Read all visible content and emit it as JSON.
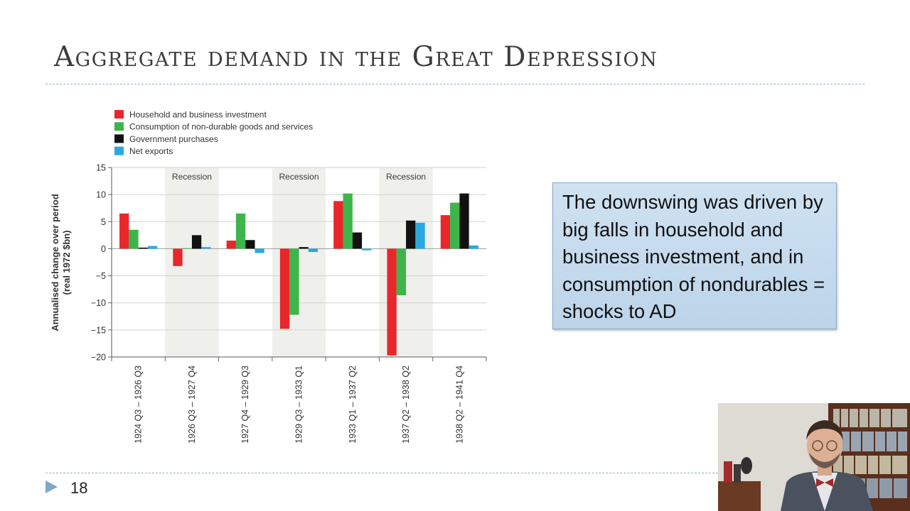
{
  "slide": {
    "title": "Aggregate demand in the Great Depression",
    "page_number": "18",
    "callout_text": "The downswing was driven by big falls in household and business investment, and in consumption of nondurables = shocks to AD"
  },
  "chart_data": {
    "type": "bar",
    "categories": [
      "1924 Q3 – 1926 Q3",
      "1926 Q3 – 1927 Q4",
      "1927 Q4 – 1929 Q3",
      "1929 Q3 – 1933 Q1",
      "1933 Q1 – 1937 Q2",
      "1937 Q2 – 1938 Q2",
      "1938 Q2 – 1941 Q4"
    ],
    "series": [
      {
        "name": "Household and business investment",
        "color": "#e8272b",
        "values": [
          6.5,
          -3.2,
          1.5,
          -14.8,
          8.8,
          -19.7,
          6.2
        ]
      },
      {
        "name": "Consumption of non-durable goods and services",
        "color": "#3db54a",
        "values": [
          3.5,
          0.1,
          6.5,
          -12.2,
          10.2,
          -8.6,
          8.5
        ]
      },
      {
        "name": "Government purchases",
        "color": "#111111",
        "values": [
          0.2,
          2.5,
          1.6,
          0.3,
          3.0,
          5.2,
          10.2
        ]
      },
      {
        "name": "Net exports",
        "color": "#29a8e0",
        "values": [
          0.5,
          0.3,
          -0.8,
          -0.6,
          -0.3,
          4.8,
          0.6
        ]
      }
    ],
    "ylabel": "Annualised change over period\n(real 1972 $bn)",
    "xlabel": "",
    "ylim": [
      -20,
      15
    ],
    "yticks": [
      15,
      10,
      5,
      0,
      -5,
      -10,
      -15,
      -20
    ],
    "yticklabels": [
      "15",
      "10",
      "5",
      "0",
      "−5",
      "−10",
      "−15",
      "−20"
    ],
    "grid": true,
    "legend": "top-left",
    "annotations": [
      {
        "category_index": 1,
        "text": "Recession"
      },
      {
        "category_index": 3,
        "text": "Recession"
      },
      {
        "category_index": 5,
        "text": "Recession"
      }
    ]
  }
}
